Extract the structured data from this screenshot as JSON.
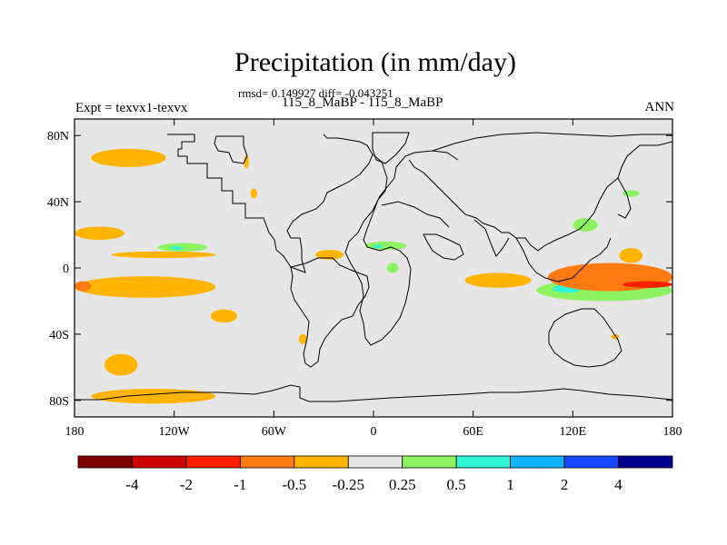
{
  "header": {
    "title": "Precipitation (in mm/day)",
    "stats": "rmsd= 0.149927 diff= -0.043251",
    "case": "115_8_MaBP - 115_8_MaBP",
    "expt": "Expt = texvx1-texvx",
    "season": "ANN"
  },
  "chart_data": {
    "type": "heatmap",
    "projection": "cylindrical-equidistant",
    "title": "Precipitation (in mm/day)",
    "xlim": [
      -180,
      180
    ],
    "ylim": [
      -90,
      90
    ],
    "x_ticks": [
      {
        "value": -180,
        "label": "180"
      },
      {
        "value": -120,
        "label": "120W"
      },
      {
        "value": -60,
        "label": "60W"
      },
      {
        "value": 0,
        "label": "0"
      },
      {
        "value": 60,
        "label": "60E"
      },
      {
        "value": 120,
        "label": "120E"
      },
      {
        "value": 180,
        "label": "180"
      }
    ],
    "y_ticks": [
      {
        "value": 80,
        "label": "80N"
      },
      {
        "value": 40,
        "label": "40N"
      },
      {
        "value": 0,
        "label": "0"
      },
      {
        "value": -40,
        "label": "40S"
      },
      {
        "value": -80,
        "label": "80S"
      }
    ],
    "background_color": "#e6e6e6",
    "colorbar": {
      "colors": [
        "#800000",
        "#cc0000",
        "#ff2000",
        "#ff7a10",
        "#ffb400",
        "#e6e6e6",
        "#8cf25f",
        "#2ff5d6",
        "#12b4ff",
        "#1746ff",
        "#00008c"
      ],
      "labels": [
        "-4",
        "-2",
        "-1",
        "-0.5",
        "-0.25",
        "0.25",
        "0.5",
        "1",
        "2",
        "4"
      ]
    },
    "anomaly_regions": [
      {
        "name": "north-pacific-high-lat",
        "color": "#ffb400",
        "lon": [
          -170,
          -125
        ],
        "lat": [
          61,
          72
        ]
      },
      {
        "name": "north-pacific-mid-lat",
        "color": "#ffb400",
        "lon": [
          -180,
          -150
        ],
        "lat": [
          17,
          25
        ]
      },
      {
        "name": "north-pacific-subtropics",
        "color": "#ffb400",
        "lon": [
          -158,
          -95
        ],
        "lat": [
          6,
          10
        ]
      },
      {
        "name": "tropical-east-pacific",
        "color": "#8cf25f",
        "lon": [
          -130,
          -100
        ],
        "lat": [
          10,
          15
        ]
      },
      {
        "name": "tropical-east-pacific-core",
        "color": "#2ff5d6",
        "lon": [
          -122,
          -115
        ],
        "lat": [
          11,
          13
        ]
      },
      {
        "name": "south-pacific-convergence",
        "color": "#ffb400",
        "lon": [
          -180,
          -95
        ],
        "lat": [
          -18,
          -5
        ]
      },
      {
        "name": "south-pacific-west-edge",
        "color": "#ff7a10",
        "lon": [
          -180,
          -170
        ],
        "lat": [
          -14,
          -8
        ]
      },
      {
        "name": "southeast-pacific",
        "color": "#ffb400",
        "lon": [
          -98,
          -82
        ],
        "lat": [
          -33,
          -25
        ]
      },
      {
        "name": "south-pacific-mid-lat",
        "color": "#ffb400",
        "lon": [
          -162,
          -142
        ],
        "lat": [
          -65,
          -52
        ]
      },
      {
        "name": "southern-ocean",
        "color": "#ffb400",
        "lon": [
          -170,
          -95
        ],
        "lat": [
          -82,
          -73
        ]
      },
      {
        "name": "atlantic-itcz",
        "color": "#ffb400",
        "lon": [
          -35,
          -18
        ],
        "lat": [
          5,
          11
        ]
      },
      {
        "name": "sahel",
        "color": "#8cf25f",
        "lon": [
          -5,
          20
        ],
        "lat": [
          11,
          16
        ]
      },
      {
        "name": "west-africa-core",
        "color": "#2ff5d6",
        "lon": [
          0,
          5
        ],
        "lat": [
          12,
          14
        ]
      },
      {
        "name": "central-africa",
        "color": "#8cf25f",
        "lon": [
          8,
          15
        ],
        "lat": [
          -3,
          3
        ]
      },
      {
        "name": "south-america",
        "color": "#ffb400",
        "lon": [
          -45,
          -40
        ],
        "lat": [
          -46,
          -40
        ]
      },
      {
        "name": "indian-ocean",
        "color": "#ffb400",
        "lon": [
          55,
          95
        ],
        "lat": [
          -12,
          -3
        ]
      },
      {
        "name": "maritime-continent",
        "color": "#8cf25f",
        "lon": [
          98,
          180
        ],
        "lat": [
          -20,
          -7
        ]
      },
      {
        "name": "maritime-core",
        "color": "#2ff5d6",
        "lon": [
          108,
          125
        ],
        "lat": [
          -15,
          -10
        ]
      },
      {
        "name": "pacific-warm-pool",
        "color": "#ff7a10",
        "lon": [
          105,
          180
        ],
        "lat": [
          -14,
          3
        ]
      },
      {
        "name": "west-pacific-max",
        "color": "#ff2000",
        "lon": [
          150,
          180
        ],
        "lat": [
          -12,
          -8
        ]
      },
      {
        "name": "east-asia",
        "color": "#8cf25f",
        "lon": [
          120,
          135
        ],
        "lat": [
          22,
          30
        ]
      },
      {
        "name": "north-asia",
        "color": "#8cf25f",
        "lon": [
          150,
          160
        ],
        "lat": [
          43,
          47
        ]
      },
      {
        "name": "north-west-pacific",
        "color": "#ffb400",
        "lon": [
          148,
          162
        ],
        "lat": [
          3,
          12
        ]
      },
      {
        "name": "south-indian",
        "color": "#ffb400",
        "lon": [
          143,
          148
        ],
        "lat": [
          -43,
          -40
        ]
      },
      {
        "name": "north-atlantic",
        "color": "#ffb400",
        "lon": [
          -74,
          -70
        ],
        "lat": [
          42,
          48
        ]
      },
      {
        "name": "north-atlantic-north",
        "color": "#ffb400",
        "lon": [
          -78,
          -75
        ],
        "lat": [
          60,
          68
        ]
      }
    ]
  }
}
